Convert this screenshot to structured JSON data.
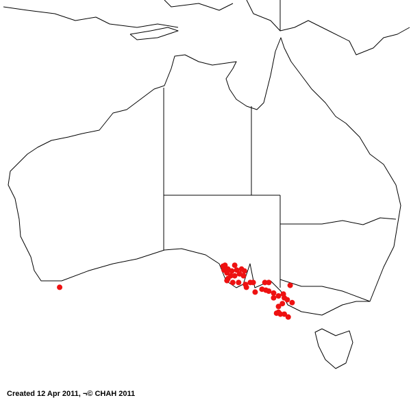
{
  "caption": "Created 12 Apr 2011, ¬© CHAH 2011",
  "colors": {
    "point": "#ee1111",
    "land_outline": "#000000",
    "background": "#ffffff"
  },
  "map": {
    "region": "Australia",
    "occurrences": [
      {
        "lon": 118.3,
        "lat": -35.6
      },
      {
        "lon": 135.1,
        "lat": -33.4
      },
      {
        "lon": 135.3,
        "lat": -33.3
      },
      {
        "lon": 136.3,
        "lat": -33.3
      },
      {
        "lon": 135.2,
        "lat": -33.8
      },
      {
        "lon": 135.6,
        "lat": -33.7
      },
      {
        "lon": 136.0,
        "lat": -33.9
      },
      {
        "lon": 136.5,
        "lat": -33.8
      },
      {
        "lon": 137.0,
        "lat": -33.7
      },
      {
        "lon": 137.3,
        "lat": -33.9
      },
      {
        "lon": 135.5,
        "lat": -34.1
      },
      {
        "lon": 135.9,
        "lat": -34.4
      },
      {
        "lon": 136.3,
        "lat": -34.4
      },
      {
        "lon": 136.8,
        "lat": -34.2
      },
      {
        "lon": 137.2,
        "lat": -34.4
      },
      {
        "lon": 135.6,
        "lat": -34.7
      },
      {
        "lon": 135.5,
        "lat": -34.9
      },
      {
        "lon": 136.1,
        "lat": -35.1
      },
      {
        "lon": 136.7,
        "lat": -35.1
      },
      {
        "lon": 137.4,
        "lat": -35.3
      },
      {
        "lon": 137.9,
        "lat": -35.1
      },
      {
        "lon": 138.2,
        "lat": -35.1
      },
      {
        "lon": 137.5,
        "lat": -35.6
      },
      {
        "lon": 138.4,
        "lat": -36.1
      },
      {
        "lon": 139.4,
        "lat": -35.1
      },
      {
        "lon": 139.8,
        "lat": -35.1
      },
      {
        "lon": 139.1,
        "lat": -35.8
      },
      {
        "lon": 139.5,
        "lat": -35.9
      },
      {
        "lon": 139.8,
        "lat": -36.0
      },
      {
        "lon": 142.0,
        "lat": -35.4
      },
      {
        "lon": 140.3,
        "lat": -36.2
      },
      {
        "lon": 140.8,
        "lat": -36.5
      },
      {
        "lon": 141.3,
        "lat": -36.3
      },
      {
        "lon": 140.3,
        "lat": -36.7
      },
      {
        "lon": 141.4,
        "lat": -36.7
      },
      {
        "lon": 141.7,
        "lat": -36.9
      },
      {
        "lon": 142.2,
        "lat": -37.2
      },
      {
        "lon": 141.2,
        "lat": -37.3
      },
      {
        "lon": 140.8,
        "lat": -37.6
      },
      {
        "lon": 140.6,
        "lat": -38.3
      },
      {
        "lon": 141.0,
        "lat": -38.4
      },
      {
        "lon": 141.4,
        "lat": -38.4
      },
      {
        "lon": 141.8,
        "lat": -38.7
      },
      {
        "lon": 140.8,
        "lat": -38.2
      }
    ]
  }
}
